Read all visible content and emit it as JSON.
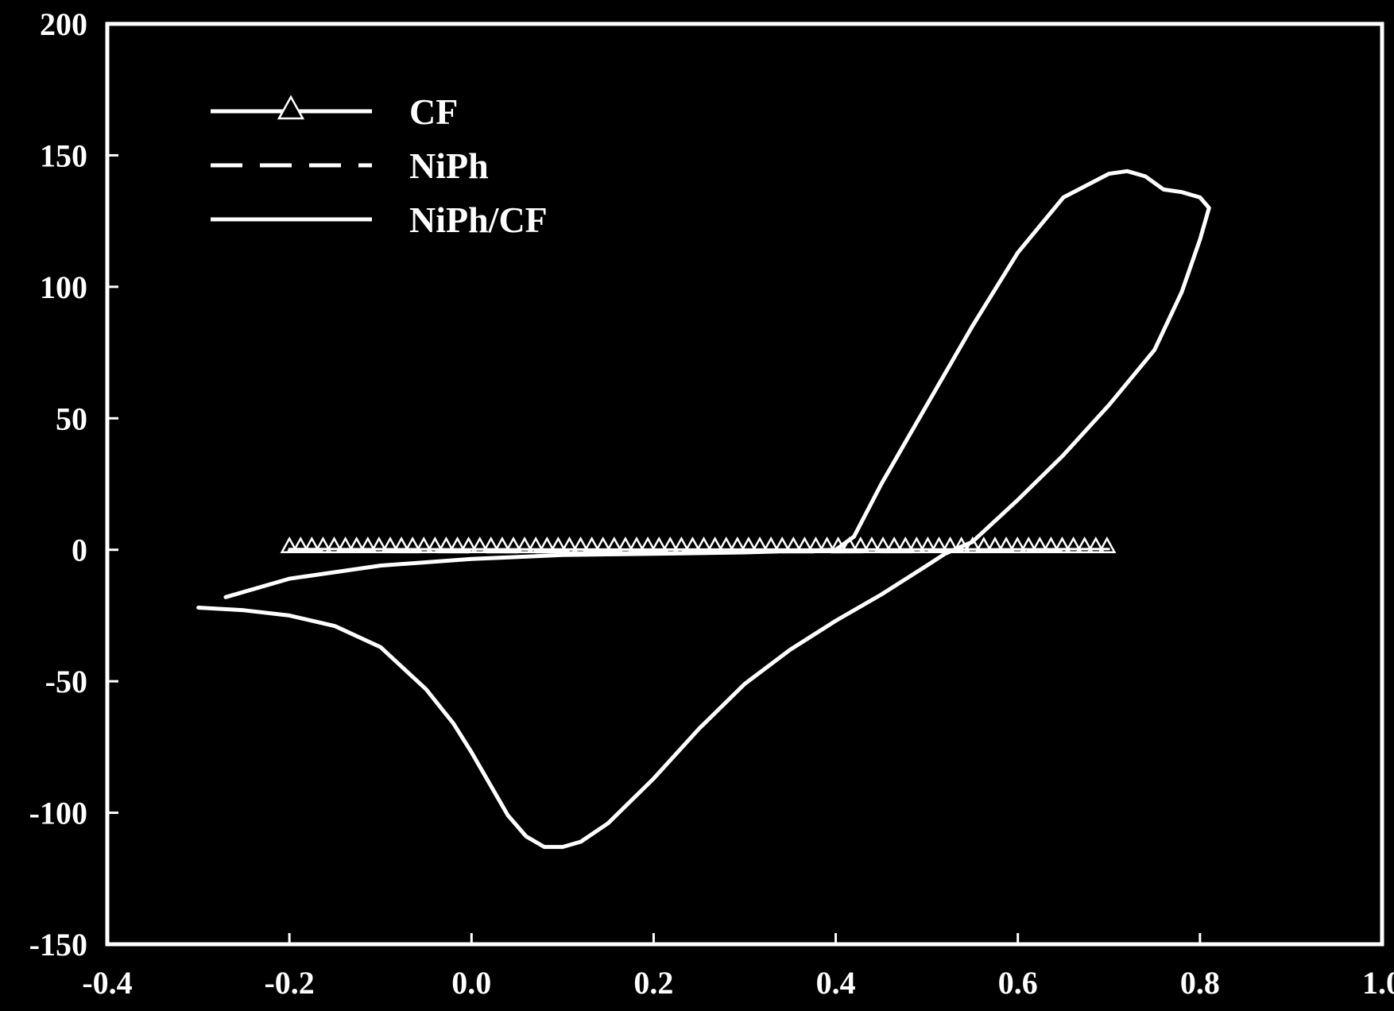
{
  "chart_data": {
    "type": "line",
    "title": "",
    "xlabel": "",
    "ylabel": "",
    "xlim": [
      -0.4,
      1.0
    ],
    "ylim": [
      -150,
      200
    ],
    "x_ticks": [
      -0.4,
      -0.2,
      0.0,
      0.2,
      0.4,
      0.6,
      0.8,
      1.0
    ],
    "x_tick_labels": [
      "-0.4",
      "-0.2",
      "0.0",
      "0.2",
      "0.4",
      "0.6",
      "0.8",
      "1.0"
    ],
    "y_ticks": [
      -150,
      -100,
      -50,
      0,
      50,
      100,
      150,
      200
    ],
    "y_tick_labels": [
      "-150",
      "-100",
      "-50",
      "0",
      "50",
      "100",
      "150",
      "200"
    ],
    "grid": false,
    "legend_position": "top-left",
    "colors": {
      "background": "#000000",
      "foreground": "#ffffff"
    },
    "series": [
      {
        "name": "CF",
        "style": "solid-triangle-markers",
        "x": [
          -0.2,
          0.0,
          0.2,
          0.4,
          0.6,
          0.7
        ],
        "y": [
          0.3,
          0.2,
          0.1,
          0.1,
          0.2,
          0.3
        ],
        "marker_x_start": -0.2,
        "marker_x_end": 0.7,
        "marker_spacing": 0.0123
      },
      {
        "name": "NiPh",
        "style": "dashed",
        "x": [
          -0.2,
          0.0,
          0.2,
          0.4,
          0.6,
          0.65
        ],
        "y": [
          -0.5,
          -0.6,
          -0.6,
          -0.6,
          -0.5,
          -0.4
        ]
      },
      {
        "name": "NiPh/CF",
        "style": "solid",
        "x": [
          -0.27,
          -0.2,
          -0.1,
          0.0,
          0.1,
          0.2,
          0.3,
          0.4,
          0.42,
          0.45,
          0.5,
          0.55,
          0.6,
          0.65,
          0.7,
          0.72,
          0.74,
          0.76,
          0.78,
          0.8,
          0.81,
          0.8,
          0.78,
          0.75,
          0.7,
          0.65,
          0.6,
          0.55,
          0.52,
          0.5,
          0.45,
          0.4,
          0.35,
          0.3,
          0.25,
          0.2,
          0.15,
          0.12,
          0.1,
          0.08,
          0.06,
          0.04,
          0.02,
          0.0,
          -0.02,
          -0.05,
          -0.1,
          -0.15,
          -0.2,
          -0.25,
          -0.3
        ],
        "y": [
          -18,
          -11,
          -6,
          -3.5,
          -2,
          -1.5,
          -1,
          0,
          5,
          25,
          55,
          85,
          113,
          134,
          143,
          144,
          142,
          137,
          136,
          134,
          130,
          118,
          98,
          76,
          55,
          36,
          19,
          3,
          -1.5,
          -6,
          -17,
          -27,
          -38,
          -51,
          -68,
          -87,
          -104,
          -111,
          -113,
          -113,
          -109,
          -101,
          -89,
          -77,
          -66,
          -53,
          -37,
          -29,
          -25,
          -23,
          -22
        ]
      }
    ]
  }
}
